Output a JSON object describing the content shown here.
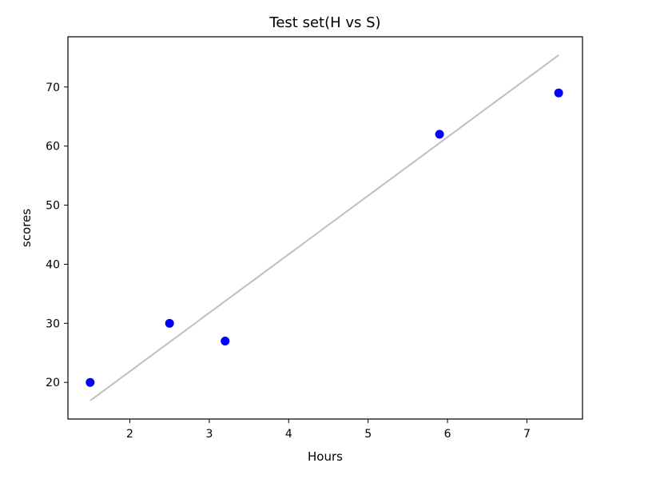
{
  "chart_data": {
    "type": "scatter",
    "title": "Test set(H vs S)",
    "xlabel": "Hours",
    "ylabel": "scores",
    "xlim": [
      1.22,
      7.7
    ],
    "ylim": [
      13.8,
      78.5
    ],
    "x_ticks": [
      2,
      3,
      4,
      5,
      6,
      7
    ],
    "y_ticks": [
      20,
      30,
      40,
      50,
      60,
      70
    ],
    "grid": false,
    "series": [
      {
        "type": "scatter",
        "color": "#0000ff",
        "x": [
          1.5,
          2.5,
          3.2,
          5.9,
          7.4
        ],
        "y": [
          20,
          30,
          27,
          62,
          69
        ]
      },
      {
        "type": "line",
        "color": "#bfbfbf",
        "x": [
          1.5,
          7.4
        ],
        "y": [
          16.9,
          75.4
        ]
      }
    ]
  }
}
